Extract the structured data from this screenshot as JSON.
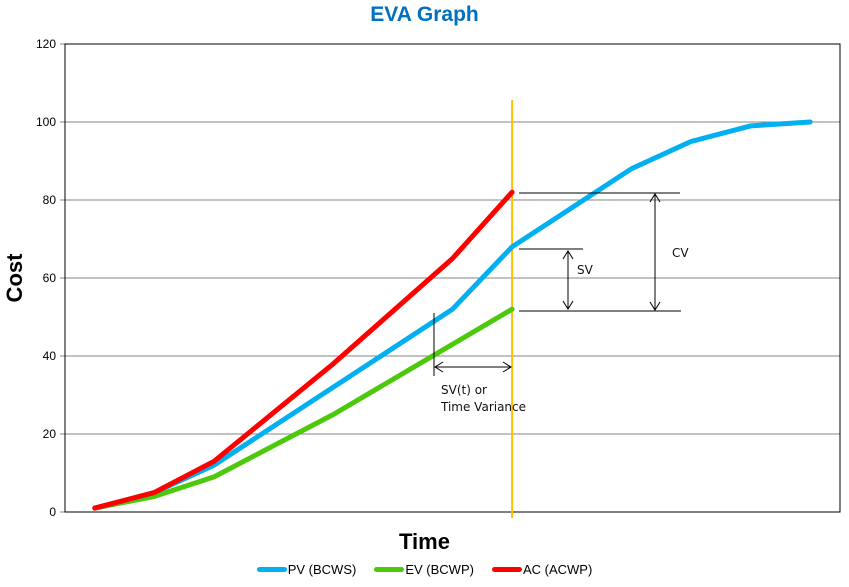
{
  "title": "EVA Graph",
  "chart_data": {
    "type": "line",
    "title": "EVA Graph",
    "xlabel": "Time",
    "ylabel": "Cost",
    "ylim": [
      0,
      120
    ],
    "xlim": [
      0.5,
      13.5
    ],
    "yticks": [
      "0",
      "20",
      "40",
      "60",
      "80",
      "100",
      "120"
    ],
    "ytick_values": [
      0,
      20,
      40,
      60,
      80,
      100,
      120
    ],
    "grid": true,
    "legend_position": "bottom",
    "status_date_x": 8,
    "series": [
      {
        "name": "PV (BCWS)",
        "color": "#00B0F0",
        "x": [
          1,
          2,
          3,
          5,
          7,
          8,
          10,
          11,
          12,
          13
        ],
        "values": [
          1,
          5,
          12,
          32,
          52,
          68,
          88,
          95,
          99,
          100
        ]
      },
      {
        "name": "EV (BCWP)",
        "color": "#4CC90A",
        "x": [
          1,
          2,
          3,
          5,
          8
        ],
        "values": [
          1,
          4,
          9,
          25,
          52
        ]
      },
      {
        "name": "AC (ACWP)",
        "color": "#FF0000",
        "x": [
          1,
          2,
          3,
          5,
          7,
          8
        ],
        "values": [
          1,
          5,
          13,
          38,
          65,
          82
        ]
      }
    ],
    "status_line_color": "#FFC000",
    "annotations": {
      "cv": "CV",
      "sv": "SV",
      "svt_line1": "SV(t) or",
      "svt_line2": "Time Variance"
    }
  }
}
